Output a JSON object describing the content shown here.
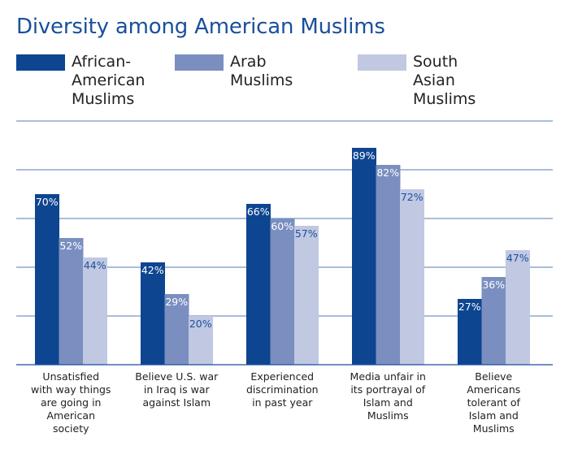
{
  "page": {
    "title": "Diversity among American Muslims"
  },
  "colors": {
    "African-American Muslims": "#0d4590",
    "Arab Muslims": "#7a8fc0",
    "South Asian Muslims": "#c0c8e2",
    "gridline": "#1b4f9c",
    "title": "#1b4f9c"
  },
  "legend": [
    {
      "label": "African-\nAmerican\nMuslims",
      "color": "#0d4590"
    },
    {
      "label": "Arab Muslims",
      "color": "#7a8fc0"
    },
    {
      "label": "South Asian\nMuslims",
      "color": "#c0c8e2"
    }
  ],
  "chart_data": {
    "type": "bar",
    "title": "Diversity among American Muslims",
    "xlabel": "",
    "ylabel": "",
    "ylim": [
      0,
      100
    ],
    "grid": true,
    "legend_position": "top",
    "categories": [
      "Unsatisfied with way things are going in American society",
      "Believe U.S. war in Iraq is war against Islam",
      "Experienced discrimination in past year",
      "Media unfair in its portrayal of Islam and Muslims",
      "Believe Americans tolerant of Islam and Muslims"
    ],
    "category_lines": [
      [
        "Unsatisfied",
        "with way things",
        "are going in",
        "American",
        "society"
      ],
      [
        "Believe U.S. war",
        "in Iraq is war",
        "against Islam"
      ],
      [
        "Experienced",
        "discrimination",
        "in past year"
      ],
      [
        "Media unfair in",
        "its portrayal of",
        "Islam and",
        "Muslims"
      ],
      [
        "Believe",
        "Americans",
        "tolerant of",
        "Islam and",
        "Muslims"
      ]
    ],
    "series": [
      {
        "name": "African-American Muslims",
        "values": [
          70,
          42,
          66,
          89,
          27
        ],
        "labels": [
          "70%",
          "42%",
          "66%",
          "89%",
          "27%"
        ],
        "color": "#0d4590",
        "label_color": "#ffffff"
      },
      {
        "name": "Arab Muslims",
        "values": [
          52,
          29,
          60,
          82,
          36
        ],
        "labels": [
          "52%",
          "29%",
          "60%",
          "82%",
          "36%"
        ],
        "color": "#7a8fc0",
        "label_color": "#ffffff"
      },
      {
        "name": "South Asian Muslims",
        "values": [
          44,
          20,
          57,
          72,
          47
        ],
        "labels": [
          "44%",
          "20%",
          "57%",
          "72%",
          "47%"
        ],
        "color": "#c0c8e2",
        "label_color": "#1b4f9c"
      }
    ]
  }
}
